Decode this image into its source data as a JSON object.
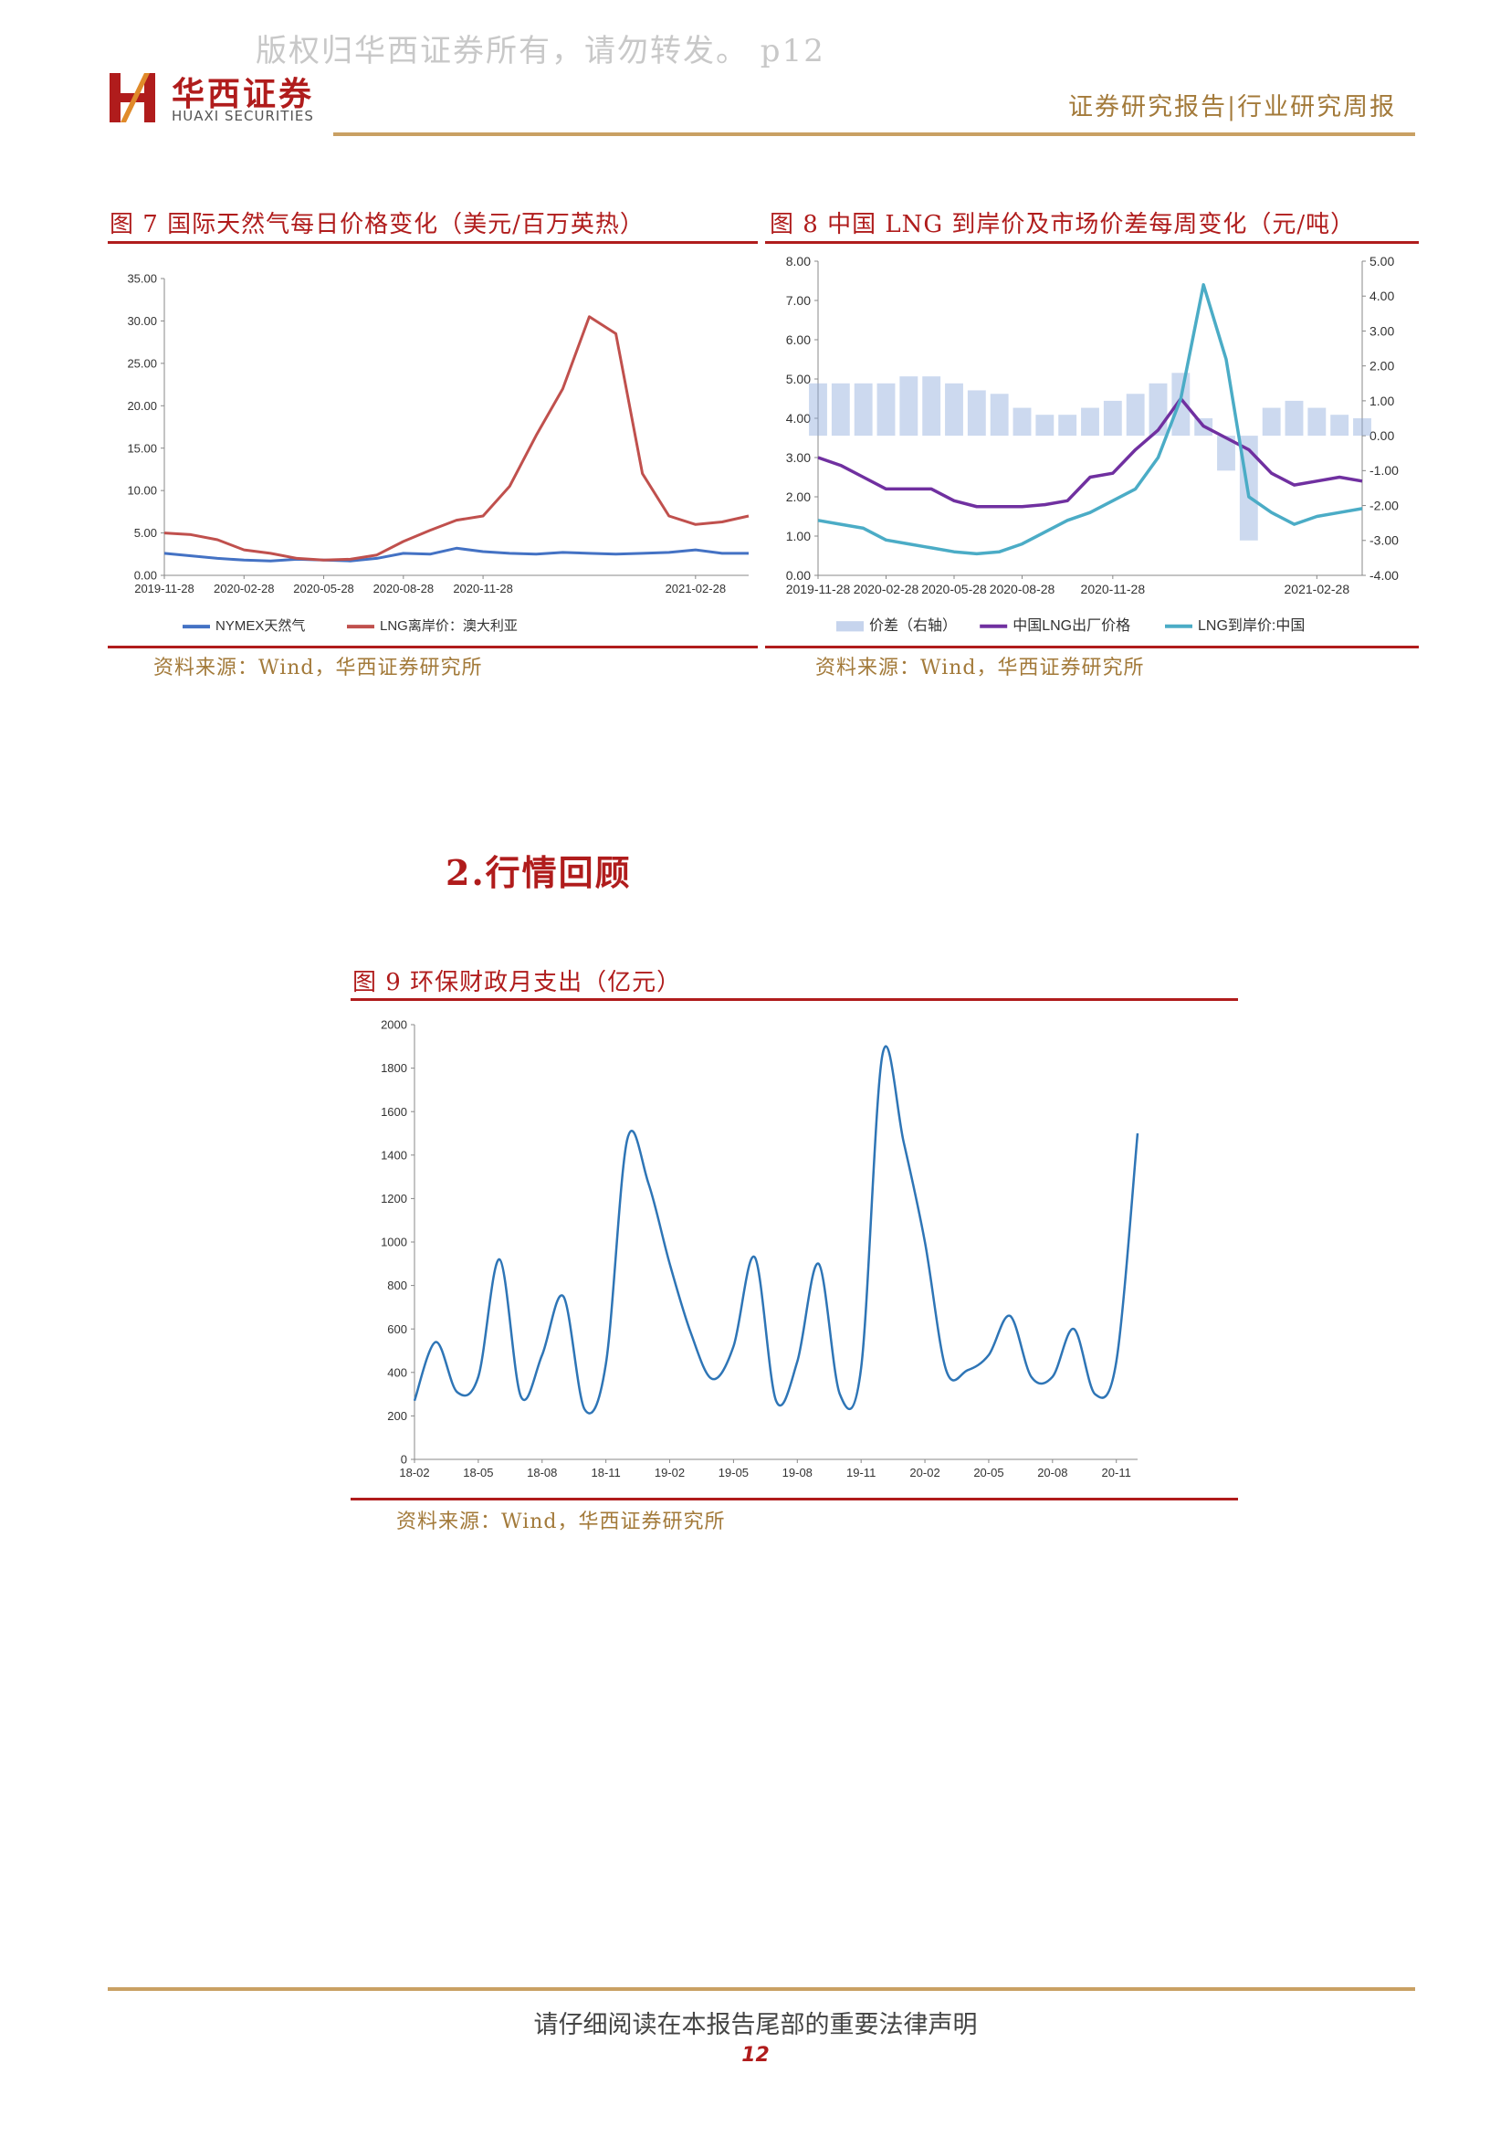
{
  "page": {
    "watermark": "版权归华西证券所有，请勿转发。 p12",
    "logo": {
      "cn": "华西证券",
      "en": "HUAXI SECURITIES"
    },
    "header_right": "证券研究报告|行业研究周报",
    "section_title": "2.行情回顾",
    "footer": "请仔细阅读在本报告尾部的重要法律声明",
    "page_number": "12"
  },
  "colors": {
    "brand_red": "#b01c1c",
    "gold": "#c9a063"
  },
  "figures": {
    "fig7": {
      "title": "图 7 国际天然气每日价格变化（美元/百万英热）",
      "source": "资料来源：Wind，华西证券研究所"
    },
    "fig8": {
      "title": "图 8 中国 LNG 到岸价及市场价差每周变化（元/吨）",
      "source": "资料来源：Wind，华西证券研究所"
    },
    "fig9": {
      "title": "图 9 环保财政月支出（亿元）",
      "source": "资料来源：Wind，华西证券研究所"
    }
  },
  "chart_data": [
    {
      "id": "fig7",
      "type": "line",
      "title": "",
      "xlabel": "",
      "ylabel": "",
      "ylim": [
        0,
        35
      ],
      "yticks": [
        "0.00",
        "5.00",
        "10.00",
        "15.00",
        "20.00",
        "25.00",
        "30.00",
        "35.00"
      ],
      "x": [
        "2019-11-28",
        "2019-12-28",
        "2020-01-28",
        "2020-02-28",
        "2020-03-28",
        "2020-04-28",
        "2020-05-28",
        "2020-06-28",
        "2020-07-28",
        "2020-08-28",
        "2020-09-28",
        "2020-10-28",
        "2020-11-28",
        "2020-12-15",
        "2020-12-28",
        "2021-01-05",
        "2021-01-10",
        "2021-01-15",
        "2021-01-20",
        "2021-01-28",
        "2021-02-28",
        "2021-03-28",
        "2021-04-15"
      ],
      "xticks": [
        "2019-11-28",
        "2020-02-28",
        "2020-05-28",
        "2020-08-28",
        "2020-11-28",
        "2021-02-28"
      ],
      "grid": false,
      "legend_position": "bottom",
      "series": [
        {
          "name": "NYMEX天然气",
          "color": "#4472c4",
          "values": [
            2.6,
            2.3,
            2.0,
            1.8,
            1.7,
            1.9,
            1.8,
            1.7,
            2.0,
            2.6,
            2.5,
            3.2,
            2.8,
            2.6,
            2.5,
            2.7,
            2.6,
            2.5,
            2.6,
            2.7,
            3.0,
            2.6,
            2.6
          ]
        },
        {
          "name": "LNG离岸价：澳大利亚",
          "color": "#c0504d",
          "values": [
            5.0,
            4.8,
            4.2,
            3.0,
            2.6,
            2.0,
            1.8,
            1.9,
            2.4,
            4.0,
            5.3,
            6.5,
            7.0,
            10.5,
            16.5,
            22.0,
            30.5,
            28.5,
            12.0,
            7.0,
            6.0,
            6.3,
            7.0
          ]
        }
      ]
    },
    {
      "id": "fig8",
      "type": "line",
      "title": "",
      "xlabel": "",
      "ylabel": "",
      "ylim": [
        0,
        8
      ],
      "y2lim": [
        -4,
        5
      ],
      "yticks": [
        "0.00",
        "1.00",
        "2.00",
        "3.00",
        "4.00",
        "5.00",
        "6.00",
        "7.00",
        "8.00"
      ],
      "y2ticks": [
        "-4.00",
        "-3.00",
        "-2.00",
        "-1.00",
        "0.00",
        "1.00",
        "2.00",
        "3.00",
        "4.00",
        "5.00"
      ],
      "x": [
        "2019-11-28",
        "2019-12-28",
        "2020-01-28",
        "2020-02-28",
        "2020-03-28",
        "2020-04-28",
        "2020-05-28",
        "2020-06-28",
        "2020-07-28",
        "2020-08-28",
        "2020-09-28",
        "2020-10-28",
        "2020-11-10",
        "2020-11-28",
        "2020-12-10",
        "2020-12-20",
        "2020-12-28",
        "2021-01-08",
        "2021-01-12",
        "2021-01-18",
        "2021-01-28",
        "2021-02-10",
        "2021-02-28",
        "2021-03-28",
        "2021-04-15"
      ],
      "xticks": [
        "2019-11-28",
        "2020-02-28",
        "2020-05-28",
        "2020-08-28",
        "2020-11-28",
        "2021-02-28"
      ],
      "grid": false,
      "legend_position": "bottom",
      "series": [
        {
          "name": "价差（右轴）",
          "color": "#8eaadb",
          "axis": "right",
          "type": "bar",
          "values": [
            1.5,
            1.5,
            1.5,
            1.5,
            1.7,
            1.7,
            1.5,
            1.3,
            1.2,
            0.8,
            0.6,
            0.6,
            0.8,
            1.0,
            1.2,
            1.5,
            1.8,
            0.5,
            -1.0,
            -3.0,
            0.8,
            1.0,
            0.8,
            0.6,
            0.5
          ]
        },
        {
          "name": "中国LNG出厂价格",
          "color": "#7030a0",
          "axis": "left",
          "values": [
            3.0,
            2.8,
            2.5,
            2.2,
            2.2,
            2.2,
            1.9,
            1.75,
            1.75,
            1.75,
            1.8,
            1.9,
            2.5,
            2.6,
            3.2,
            3.7,
            4.5,
            3.8,
            3.5,
            3.2,
            2.6,
            2.3,
            2.4,
            2.5,
            2.4
          ]
        },
        {
          "name": "LNG到岸价:中国",
          "color": "#4bacc6",
          "axis": "left",
          "values": [
            1.4,
            1.3,
            1.2,
            0.9,
            0.8,
            0.7,
            0.6,
            0.55,
            0.6,
            0.8,
            1.1,
            1.4,
            1.6,
            1.9,
            2.2,
            3.0,
            4.5,
            7.4,
            5.5,
            2.0,
            1.6,
            1.3,
            1.5,
            1.6,
            1.7
          ]
        }
      ]
    },
    {
      "id": "fig9",
      "type": "line",
      "title": "",
      "xlabel": "",
      "ylabel": "",
      "ylim": [
        0,
        2000
      ],
      "yticks": [
        "0",
        "200",
        "400",
        "600",
        "800",
        "1000",
        "1200",
        "1400",
        "1600",
        "1800",
        "2000"
      ],
      "x": [
        "18-02",
        "18-03",
        "18-04",
        "18-05",
        "18-06",
        "18-07",
        "18-08",
        "18-09",
        "18-10",
        "18-11",
        "18-12",
        "19-01",
        "19-02",
        "19-03",
        "19-04",
        "19-05",
        "19-06",
        "19-07",
        "19-08",
        "19-09",
        "19-10",
        "19-11",
        "19-12",
        "20-01",
        "20-02",
        "20-03",
        "20-04",
        "20-05",
        "20-06",
        "20-07",
        "20-08",
        "20-09",
        "20-10",
        "20-11",
        "20-12"
      ],
      "xticks": [
        "18-02",
        "18-05",
        "18-08",
        "18-11",
        "19-02",
        "19-05",
        "19-08",
        "19-11",
        "20-02",
        "20-05",
        "20-08",
        "20-11"
      ],
      "grid": false,
      "legend_position": "none",
      "series": [
        {
          "name": "",
          "color": "#2e75b6",
          "values": [
            270,
            540,
            310,
            380,
            920,
            290,
            480,
            750,
            230,
            440,
            1470,
            1270,
            900,
            580,
            370,
            520,
            930,
            270,
            450,
            900,
            300,
            420,
            1860,
            1460,
            1000,
            410,
            410,
            480,
            660,
            380,
            380,
            600,
            300,
            450,
            1500
          ]
        }
      ]
    }
  ]
}
